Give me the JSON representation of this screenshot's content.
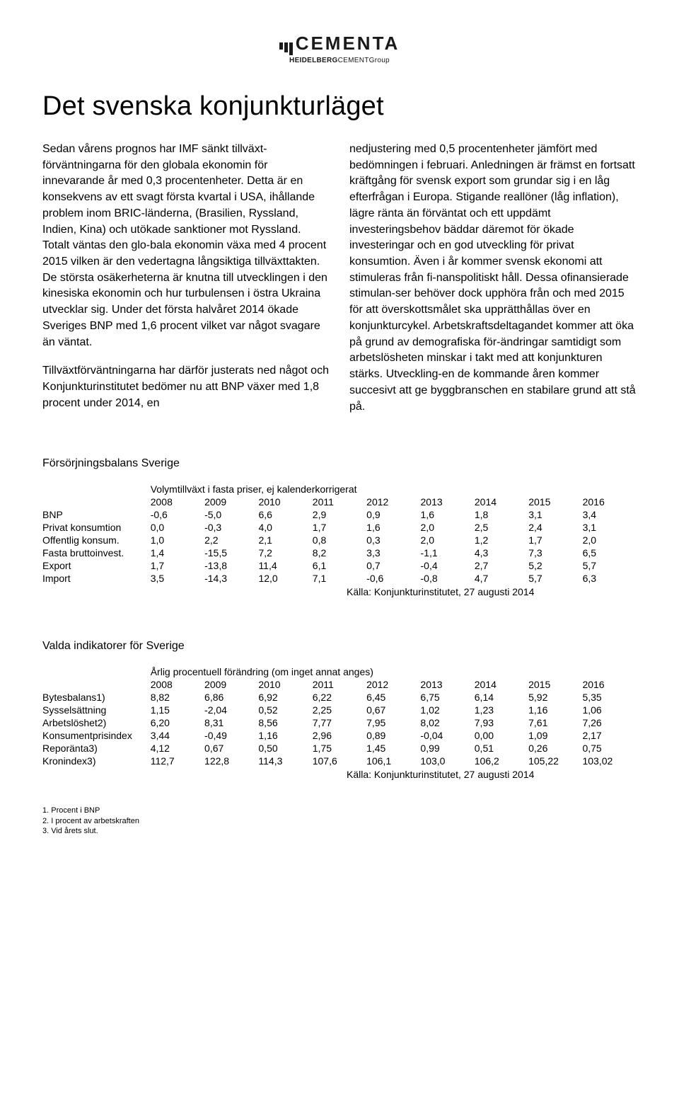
{
  "logo": {
    "main": "CEMENTA",
    "sub_bold": "HEIDELBERG",
    "sub_rest": "CEMENTGroup"
  },
  "title": "Det svenska konjunkturläget",
  "body": {
    "p1": "Sedan vårens prognos har IMF sänkt tillväxt-förväntningarna för den globala ekonomin för innevarande år med 0,3 procentenheter. Detta är en konsekvens av ett svagt första kvartal i USA, ihållande problem inom BRIC-länderna, (Brasilien, Ryssland, Indien, Kina) och utökade sanktioner mot Ryssland. Totalt väntas den glo-bala ekonomin växa med 4 procent 2015 vilken är den vedertagna långsiktiga tillväxttakten. De största osäkerheterna är knutna till utvecklingen i den kinesiska ekonomin och hur turbulensen i östra Ukraina utvecklar sig. Under det första halvåret 2014 ökade Sveriges BNP med 1,6 procent vilket var något svagare än väntat.",
    "p2": "Tillväxtförväntningarna har därför justerats ned något och Konjunkturinstitutet bedömer nu att BNP växer med 1,8 procent under 2014, en",
    "p3": "nedjustering med 0,5 procentenheter jämfört med bedömningen i februari. Anledningen är främst en fortsatt kräftgång för svensk export som grundar sig i en låg efterfrågan i Europa. Stigande reallöner (låg inflation), lägre ränta än förväntat och ett uppdämt investeringsbehov bäddar däremot för ökade investeringar och en god utveckling för privat konsumtion. Även i år kommer svensk ekonomi att stimuleras från fi-nanspolitiskt håll. Dessa ofinansierade stimulan-ser behöver dock upphöra från och med 2015 för att överskottsmålet ska upprätthållas över en konjunkturcykel. Arbetskraftsdeltagandet kommer att öka på grund av demografiska för-ändringar samtidigt som arbetslösheten minskar i takt med att konjunkturen stärks. Utveckling-en de kommande åren kommer succesivt att ge byggbranschen en stabilare grund att stå på."
  },
  "table1": {
    "title": "Försörjningsbalans Sverige",
    "caption": "Volymtillväxt i fasta priser, ej kalenderkorrigerat",
    "years": [
      "2008",
      "2009",
      "2010",
      "2011",
      "2012",
      "2013",
      "2014",
      "2015",
      "2016"
    ],
    "rows": [
      {
        "label": "BNP",
        "v": [
          "-0,6",
          "-5,0",
          "6,6",
          "2,9",
          "0,9",
          "1,6",
          "1,8",
          "3,1",
          "3,4"
        ]
      },
      {
        "label": "Privat konsumtion",
        "v": [
          "0,0",
          "-0,3",
          "4,0",
          "1,7",
          "1,6",
          "2,0",
          "2,5",
          "2,4",
          "3,1"
        ]
      },
      {
        "label": "Offentlig konsum.",
        "v": [
          "1,0",
          "2,2",
          "2,1",
          "0,8",
          "0,3",
          "2,0",
          "1,2",
          "1,7",
          "2,0"
        ]
      },
      {
        "label": "Fasta bruttoinvest.",
        "v": [
          "1,4",
          "-15,5",
          "7,2",
          "8,2",
          "3,3",
          "-1,1",
          "4,3",
          "7,3",
          "6,5"
        ]
      },
      {
        "label": "Export",
        "v": [
          "1,7",
          "-13,8",
          "11,4",
          "6,1",
          "0,7",
          "-0,4",
          "2,7",
          "5,2",
          "5,7"
        ]
      },
      {
        "label": "Import",
        "v": [
          "3,5",
          "-14,3",
          "12,0",
          "7,1",
          "-0,6",
          "-0,8",
          "4,7",
          "5,7",
          "6,3"
        ]
      }
    ],
    "source": "Källa: Konjunkturinstitutet, 27 augusti 2014"
  },
  "table2": {
    "title": "Valda indikatorer för Sverige",
    "caption": "Årlig procentuell förändring (om inget annat anges)",
    "years": [
      "2008",
      "2009",
      "2010",
      "2011",
      "2012",
      "2013",
      "2014",
      "2015",
      "2016"
    ],
    "rows": [
      {
        "label": "Bytesbalans1)",
        "v": [
          "8,82",
          "6,86",
          "6,92",
          "6,22",
          "6,45",
          "6,75",
          "6,14",
          "5,92",
          "5,35"
        ]
      },
      {
        "label": "Sysselsättning",
        "v": [
          "1,15",
          "-2,04",
          "0,52",
          "2,25",
          "0,67",
          "1,02",
          "1,23",
          "1,16",
          "1,06"
        ]
      },
      {
        "label": "Arbetslöshet2)",
        "v": [
          "6,20",
          "8,31",
          "8,56",
          "7,77",
          "7,95",
          "8,02",
          "7,93",
          "7,61",
          "7,26"
        ]
      },
      {
        "label": "Konsumentprisindex",
        "v": [
          "3,44",
          "-0,49",
          "1,16",
          "2,96",
          "0,89",
          "-0,04",
          "0,00",
          "1,09",
          "2,17"
        ]
      },
      {
        "label": "Reporänta3)",
        "v": [
          "4,12",
          "0,67",
          "0,50",
          "1,75",
          "1,45",
          "0,99",
          "0,51",
          "0,26",
          "0,75"
        ]
      },
      {
        "label": "Kronindex3)",
        "v": [
          "112,7",
          "122,8",
          "114,3",
          "107,6",
          "106,1",
          "103,0",
          "106,2",
          "105,22",
          "103,02"
        ]
      }
    ],
    "source": "Källa: Konjunkturinstitutet, 27 augusti 2014"
  },
  "footnotes": [
    "1. Procent i BNP",
    "2. I procent av arbetskraften",
    "3. Vid årets slut."
  ]
}
